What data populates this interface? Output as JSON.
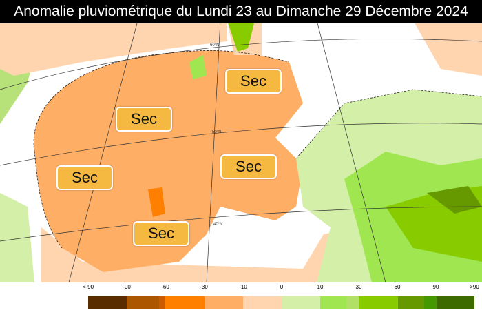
{
  "title": "Anomalie pluviométrique du Lundi 23 au Dimanche 29 Décembre 2024",
  "labels": [
    "Sec",
    "Sec",
    "Sec",
    "Sec",
    "Sec"
  ],
  "graticule_labels": [
    "60°N",
    "50°N",
    "40°N"
  ],
  "legend": {
    "ticks": [
      "<-90",
      "-90",
      "-60",
      "-30",
      "-10",
      "0",
      "10",
      "30",
      "60",
      "90",
      ">90"
    ],
    "colors": [
      "#5a2d00",
      "#ad5600",
      "#cc5a00",
      "#ff8000",
      "#ffae66",
      "#ffd5b0",
      "#d4f0a8",
      "#a0e650",
      "#b2e066",
      "#88cc00",
      "#669900",
      "#449900",
      "#3d6b00"
    ]
  },
  "colors": {
    "dry": "#ffae66",
    "slightly_dry": "#ffd5b0",
    "wet": "#d4f0a8",
    "wetter": "#88cc00",
    "label_box": "#f5b942"
  }
}
